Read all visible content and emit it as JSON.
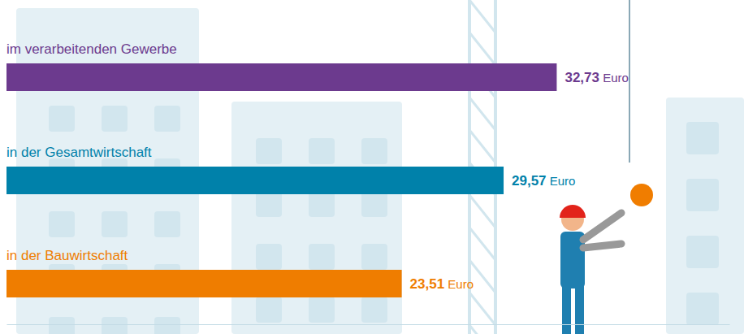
{
  "chart_data": {
    "type": "bar",
    "orientation": "horizontal",
    "categories": [
      "im verarbeitenden Gewerbe",
      "in der Gesamtwirtschaft",
      "in der Bauwirtschaft"
    ],
    "values": [
      32.73,
      29.57,
      23.51
    ],
    "value_labels": [
      "32,73 Euro",
      "29,57 Euro",
      "23,51 Euro"
    ],
    "colors": [
      "#6c3a8e",
      "#0081aa",
      "#ef7d00"
    ],
    "xlim": [
      0,
      43
    ],
    "xticks": [],
    "tick_labels": "y",
    "data_labels": true,
    "grid": false
  }
}
